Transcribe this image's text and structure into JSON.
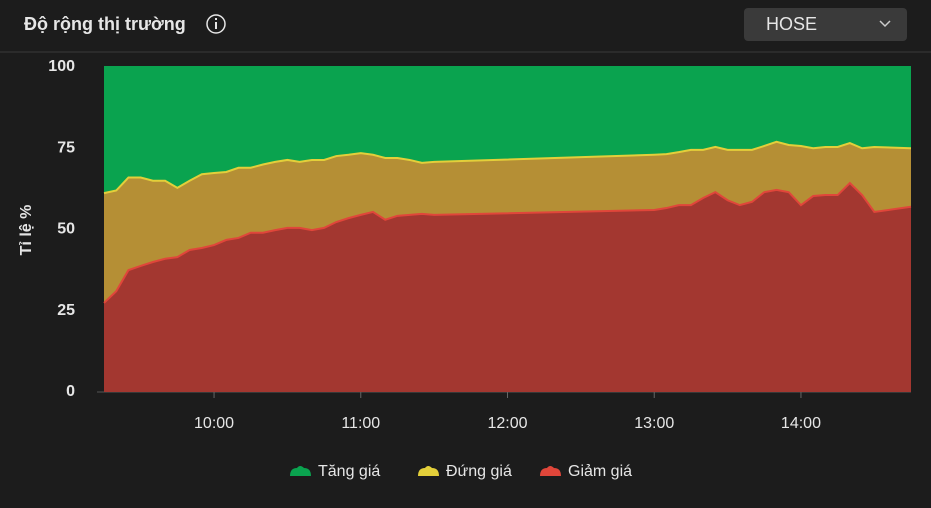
{
  "header": {
    "title": "Độ rộng thị trường",
    "dropdown": "HOSE"
  },
  "chart_data": {
    "type": "area",
    "stacked": true,
    "ylabel": "Tỉ lệ %",
    "x": [
      "09:15",
      "09:20",
      "09:25",
      "09:30",
      "09:35",
      "09:40",
      "09:45",
      "09:50",
      "09:55",
      "10:00",
      "10:05",
      "10:10",
      "10:15",
      "10:20",
      "10:25",
      "10:30",
      "10:35",
      "10:40",
      "10:45",
      "10:50",
      "10:55",
      "11:00",
      "11:05",
      "11:10",
      "11:15",
      "11:20",
      "11:25",
      "11:30",
      "13:00",
      "13:05",
      "13:10",
      "13:15",
      "13:20",
      "13:25",
      "13:30",
      "13:35",
      "13:40",
      "13:45",
      "13:50",
      "13:55",
      "14:00",
      "14:05",
      "14:10",
      "14:15",
      "14:20",
      "14:25",
      "14:30",
      "14:45"
    ],
    "series": [
      {
        "name": "Tăng giá",
        "color": "#0aa34f",
        "line_color": "#0aa34f",
        "values": [
          38.8,
          38,
          34,
          34,
          35,
          35,
          37.2,
          35,
          33,
          32.6,
          32.3,
          31,
          31,
          30,
          29.2,
          28.6,
          29.2,
          28.6,
          28.6,
          27.4,
          27,
          26.5,
          27,
          28,
          28,
          28.6,
          29.5,
          29.2,
          27,
          26.8,
          26.2,
          25.5,
          25.5,
          24.6,
          25.5,
          25.5,
          25.5,
          24.3,
          23,
          24,
          24.3,
          25,
          24.6,
          24.6,
          23.4,
          25,
          24.6,
          25
        ]
      },
      {
        "name": "Đứng giá",
        "color": "#b58f35",
        "line_color": "#e3cf3a",
        "values": [
          33.8,
          31,
          28.5,
          27.2,
          25,
          24,
          21.3,
          21.3,
          22.7,
          22.2,
          20.9,
          21.6,
          20,
          21,
          21,
          20.9,
          20.3,
          21.6,
          20.9,
          20.3,
          19.5,
          19,
          17.6,
          19,
          17.8,
          16.9,
          15.7,
          16.3,
          17,
          16.6,
          16.3,
          17,
          14.8,
          13.9,
          15.5,
          17,
          16,
          14.2,
          14.8,
          14.5,
          18.2,
          14.7,
          14.8,
          14.8,
          12.3,
          14.4,
          20,
          18
        ]
      },
      {
        "name": "Giảm giá",
        "color": "#a33730",
        "line_color": "#e0463a",
        "values": [
          27.4,
          31,
          37.5,
          38.8,
          40,
          41,
          41.5,
          43.7,
          44.3,
          45.2,
          46.8,
          47.4,
          49,
          49,
          49.8,
          50.5,
          50.5,
          49.8,
          50.5,
          52.3,
          53.5,
          54.5,
          55.4,
          53,
          54.2,
          54.5,
          54.8,
          54.5,
          56,
          56.6,
          57.5,
          57.5,
          59.7,
          61.5,
          59,
          57.5,
          58.5,
          61.5,
          62.2,
          61.5,
          57.5,
          60.3,
          60.6,
          60.6,
          64.3,
          60.6,
          55.4,
          57
        ]
      }
    ],
    "xlim": [
      "09:15",
      "14:45"
    ],
    "xticks": [
      "10:00",
      "11:00",
      "12:00",
      "13:00",
      "14:00"
    ],
    "ylim": [
      0,
      100
    ],
    "yticks": [
      0,
      25,
      50,
      75,
      100
    ],
    "grid": false,
    "legend": "bottom"
  }
}
